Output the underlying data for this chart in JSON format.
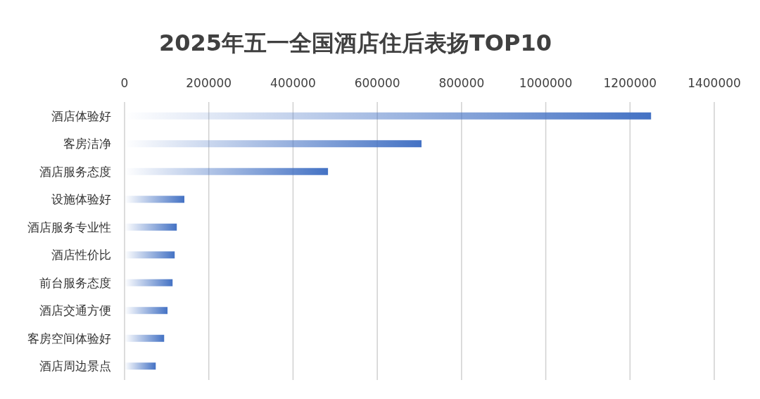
{
  "chart_data": {
    "type": "bar",
    "orientation": "horizontal",
    "title": "2025年五一全国酒店住后表扬TOP10",
    "categories": [
      "酒店体验好",
      "客房洁净",
      "酒店服务态度",
      "设施体验好",
      "酒店服务专业性",
      "酒店性价比",
      "前台服务态度",
      "酒店交通方便",
      "客房空间体验好",
      "酒店周边景点"
    ],
    "values": [
      1250000,
      705000,
      483000,
      142000,
      124000,
      119000,
      114000,
      102000,
      94000,
      74000
    ],
    "color": "#4472c4",
    "xlim": [
      0,
      1400000
    ],
    "xticks": [
      0,
      200000,
      400000,
      600000,
      800000,
      1000000,
      1200000,
      1400000
    ],
    "grid": "x"
  }
}
